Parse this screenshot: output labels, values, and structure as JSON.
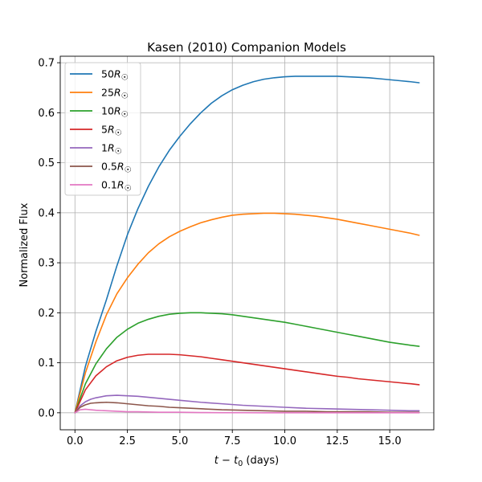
{
  "chart_data": {
    "type": "line",
    "title": "Kasen (2010) Companion Models",
    "xlabel": "t - t0 (days)",
    "ylabel": "Normalized Flux",
    "xlim": [
      -0.7,
      17.1
    ],
    "ylim": [
      -0.034,
      0.713
    ],
    "xticks": [
      0.0,
      2.5,
      5.0,
      7.5,
      10.0,
      12.5,
      15.0
    ],
    "xtick_labels": [
      "0.0",
      "2.5",
      "5.0",
      "7.5",
      "10.0",
      "12.5",
      "15.0"
    ],
    "yticks": [
      0.0,
      0.1,
      0.2,
      0.3,
      0.4,
      0.5,
      0.6,
      0.7
    ],
    "ytick_labels": [
      "0.0",
      "0.1",
      "0.2",
      "0.3",
      "0.4",
      "0.5",
      "0.6",
      "0.7"
    ],
    "grid": true,
    "legend_position": "top-left",
    "series": [
      {
        "name": "50R☉",
        "label_num": "50",
        "color": "#1f77b4",
        "x": [
          0,
          0.5,
          1,
          1.5,
          2,
          2.5,
          3,
          3.5,
          4,
          4.5,
          5,
          5.5,
          6,
          6.5,
          7,
          7.5,
          8,
          8.5,
          9,
          9.5,
          10,
          10.5,
          11,
          11.5,
          12,
          12.5,
          13,
          13.5,
          14,
          14.5,
          15,
          15.5,
          16,
          16.4
        ],
        "y": [
          0.0,
          0.093,
          0.163,
          0.226,
          0.294,
          0.356,
          0.408,
          0.453,
          0.492,
          0.525,
          0.553,
          0.578,
          0.6,
          0.619,
          0.634,
          0.646,
          0.655,
          0.662,
          0.667,
          0.67,
          0.672,
          0.673,
          0.673,
          0.673,
          0.673,
          0.673,
          0.672,
          0.671,
          0.67,
          0.668,
          0.666,
          0.664,
          0.662,
          0.66
        ]
      },
      {
        "name": "25R☉",
        "label_num": "25",
        "color": "#ff7f0e",
        "x": [
          0,
          0.5,
          1,
          1.5,
          2,
          2.5,
          3,
          3.5,
          4,
          4.5,
          5,
          5.5,
          6,
          6.5,
          7,
          7.5,
          8,
          8.5,
          9,
          9.5,
          10,
          10.5,
          11,
          11.5,
          12,
          12.5,
          13,
          13.5,
          14,
          14.5,
          15,
          15.5,
          16,
          16.4
        ],
        "y": [
          0.0,
          0.08,
          0.142,
          0.196,
          0.238,
          0.27,
          0.297,
          0.32,
          0.338,
          0.352,
          0.363,
          0.372,
          0.38,
          0.386,
          0.391,
          0.395,
          0.397,
          0.398,
          0.399,
          0.399,
          0.398,
          0.397,
          0.395,
          0.393,
          0.39,
          0.387,
          0.383,
          0.379,
          0.375,
          0.371,
          0.367,
          0.363,
          0.359,
          0.355
        ]
      },
      {
        "name": "10R☉",
        "label_num": "10",
        "color": "#2ca02c",
        "x": [
          0,
          0.5,
          1,
          1.5,
          2,
          2.5,
          3,
          3.5,
          4,
          4.5,
          5,
          5.5,
          6,
          6.5,
          7,
          7.5,
          8,
          8.5,
          9,
          9.5,
          10,
          10.5,
          11,
          11.5,
          12,
          12.5,
          13,
          13.5,
          14,
          14.5,
          15,
          15.5,
          16,
          16.4
        ],
        "y": [
          0.0,
          0.058,
          0.098,
          0.128,
          0.151,
          0.167,
          0.179,
          0.187,
          0.193,
          0.197,
          0.199,
          0.2,
          0.2,
          0.199,
          0.198,
          0.196,
          0.193,
          0.19,
          0.187,
          0.184,
          0.181,
          0.177,
          0.173,
          0.169,
          0.165,
          0.161,
          0.157,
          0.153,
          0.149,
          0.145,
          0.141,
          0.138,
          0.135,
          0.133
        ]
      },
      {
        "name": "5R☉",
        "label_num": "5",
        "color": "#d62728",
        "x": [
          0,
          0.5,
          1,
          1.5,
          2,
          2.5,
          3,
          3.5,
          4,
          4.5,
          5,
          5.5,
          6,
          6.5,
          7,
          7.5,
          8,
          8.5,
          9,
          9.5,
          10,
          10.5,
          11,
          11.5,
          12,
          12.5,
          13,
          13.5,
          14,
          14.5,
          15,
          15.5,
          16,
          16.4
        ],
        "y": [
          0.0,
          0.046,
          0.074,
          0.092,
          0.104,
          0.111,
          0.115,
          0.117,
          0.117,
          0.117,
          0.116,
          0.114,
          0.112,
          0.109,
          0.106,
          0.103,
          0.1,
          0.097,
          0.094,
          0.091,
          0.088,
          0.085,
          0.082,
          0.079,
          0.076,
          0.073,
          0.071,
          0.068,
          0.066,
          0.064,
          0.062,
          0.06,
          0.058,
          0.056
        ]
      },
      {
        "name": "1R☉",
        "label_num": "1",
        "color": "#9467bd",
        "x": [
          0,
          0.25,
          0.5,
          0.75,
          1,
          1.5,
          2,
          2.5,
          3,
          3.5,
          4,
          4.5,
          5,
          6,
          7,
          8,
          9,
          10,
          11,
          12,
          13,
          14,
          15,
          16,
          16.4
        ],
        "y": [
          0.0,
          0.014,
          0.022,
          0.027,
          0.03,
          0.034,
          0.035,
          0.034,
          0.033,
          0.031,
          0.029,
          0.027,
          0.025,
          0.021,
          0.018,
          0.015,
          0.013,
          0.011,
          0.009,
          0.008,
          0.007,
          0.006,
          0.005,
          0.004,
          0.004
        ]
      },
      {
        "name": "0.5R☉",
        "label_num": "0.5",
        "color": "#8c564b",
        "x": [
          0,
          0.25,
          0.5,
          0.75,
          1,
          1.5,
          2,
          2.5,
          3,
          3.5,
          4,
          4.5,
          5,
          6,
          7,
          8,
          9,
          10,
          11,
          12,
          13,
          14,
          15,
          16,
          16.4
        ],
        "y": [
          0.0,
          0.011,
          0.016,
          0.019,
          0.02,
          0.021,
          0.02,
          0.018,
          0.016,
          0.014,
          0.013,
          0.011,
          0.01,
          0.008,
          0.006,
          0.005,
          0.004,
          0.003,
          0.003,
          0.002,
          0.002,
          0.002,
          0.001,
          0.001,
          0.001
        ]
      },
      {
        "name": "0.1R☉",
        "label_num": "0.1",
        "color": "#e377c2",
        "x": [
          0,
          0.25,
          0.5,
          0.75,
          1,
          1.5,
          2,
          2.5,
          3,
          4,
          5,
          6,
          7,
          8,
          9,
          10,
          12,
          14,
          16.4
        ],
        "y": [
          0.0,
          0.006,
          0.007,
          0.006,
          0.005,
          0.004,
          0.003,
          0.002,
          0.002,
          0.001,
          0.001,
          0.0005,
          0.0003,
          0.0002,
          0.0001,
          0.0,
          0.0,
          0.0,
          0.0
        ]
      }
    ]
  }
}
